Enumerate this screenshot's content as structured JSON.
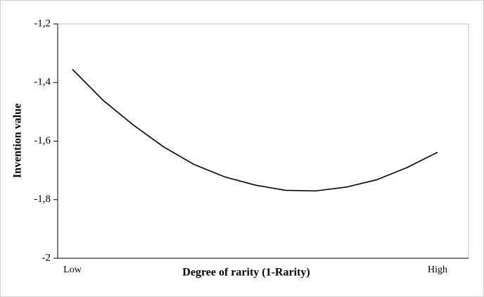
{
  "chart_data": {
    "type": "line",
    "categories": [
      "Low",
      null,
      null,
      null,
      null,
      null,
      null,
      null,
      null,
      null,
      null,
      null,
      "High"
    ],
    "series": [
      {
        "name": "Invention value",
        "color": "#000000",
        "values": [
          -1.355,
          -1.46,
          -1.545,
          -1.62,
          -1.68,
          -1.722,
          -1.75,
          -1.768,
          -1.77,
          -1.757,
          -1.732,
          -1.69,
          -1.638
        ]
      }
    ],
    "y_label": "Invention value",
    "x_label": "Degree of rarity (1-Rarity)",
    "ylim": [
      -2,
      -1.2
    ],
    "yticks": [
      {
        "value": -2,
        "label": "-2"
      },
      {
        "value": -1.8,
        "label": "-1,8"
      },
      {
        "value": -1.6,
        "label": "-1,6"
      },
      {
        "value": -1.4,
        "label": "-1,4"
      },
      {
        "value": -1.2,
        "label": "-1,2"
      }
    ],
    "grid": false
  }
}
